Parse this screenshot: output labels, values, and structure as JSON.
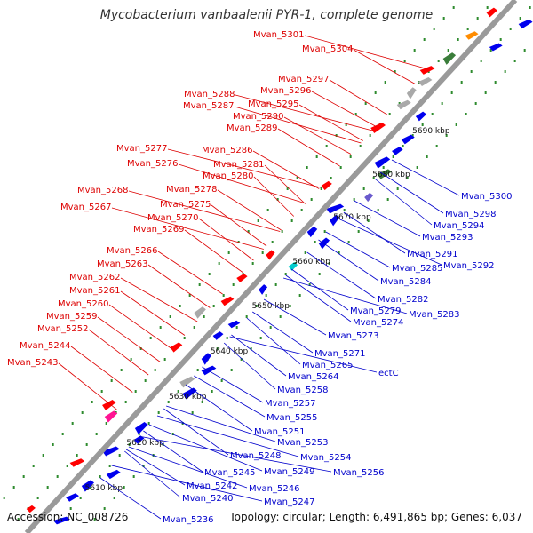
{
  "title": "Mycobacterium vanbaalenii PYR-1, complete genome",
  "footer": {
    "accession": "Accession: NC_008726",
    "topology": "Topology: circular; Length: 6,491,865 bp; Genes: 6,037"
  },
  "colors": {
    "forward_label": "#dd0000",
    "reverse_label": "#0000cc",
    "backbone": "#9a9a9a",
    "forward_gene": "#ff0000",
    "reverse_gene": "#0000ee",
    "dots": "#2e8b2e"
  },
  "scale_ticks": [
    "5610 kbp",
    "5620 kbp",
    "5630 kbp",
    "5640 kbp",
    "5650 kbp",
    "5660 kbp",
    "5670 kbp",
    "5680 kbp",
    "5690 kbp"
  ],
  "forward_labels": [
    "Mvan_5301",
    "Mvan_5304",
    "Mvan_5297",
    "Mvan_5296",
    "Mvan_5288",
    "Mvan_5295",
    "Mvan_5287",
    "Mvan_5290",
    "Mvan_5289",
    "Mvan_5286",
    "Mvan_5277",
    "Mvan_5281",
    "Mvan_5276",
    "Mvan_5280",
    "Mvan_5278",
    "Mvan_5268",
    "Mvan_5275",
    "Mvan_5267",
    "Mvan_5270",
    "Mvan_5269",
    "Mvan_5266",
    "Mvan_5263",
    "Mvan_5262",
    "Mvan_5261",
    "Mvan_5260",
    "Mvan_5259",
    "Mvan_5252",
    "Mvan_5244",
    "Mvan_5243"
  ],
  "reverse_labels": [
    "Mvan_5300",
    "Mvan_5298",
    "Mvan_5294",
    "Mvan_5293",
    "Mvan_5291",
    "Mvan_5292",
    "Mvan_5285",
    "Mvan_5284",
    "Mvan_5282",
    "Mvan_5283",
    "Mvan_5279",
    "Mvan_5274",
    "Mvan_5273",
    "Mvan_5271",
    "Mvan_5265",
    "ectC",
    "Mvan_5264",
    "Mvan_5258",
    "Mvan_5257",
    "Mvan_5255",
    "Mvan_5251",
    "Mvan_5253",
    "Mvan_5254",
    "Mvan_5248",
    "Mvan_5256",
    "Mvan_5245",
    "Mvan_5249",
    "Mvan_5242",
    "Mvan_5246",
    "Mvan_5240",
    "Mvan_5247",
    "Mvan_5236"
  ]
}
